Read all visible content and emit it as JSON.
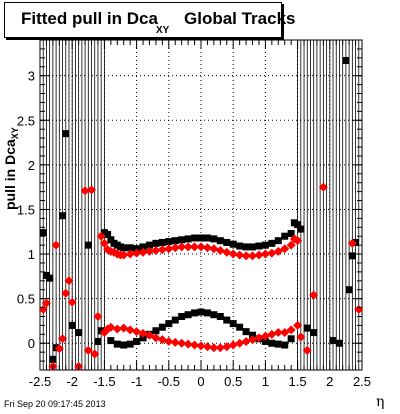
{
  "title": {
    "main": "Fitted pull in Dca",
    "subscript": "XY",
    "tail": "Global Tracks"
  },
  "ylabel": {
    "main": "pull in Dca",
    "subscript": "XY"
  },
  "xlabel": "η",
  "timestamp": "Fri Sep 20 09:17:45 2013",
  "colors": {
    "mean": "#ff0000",
    "sigma": "#000000",
    "frame": "#000000"
  },
  "chart_data": {
    "type": "scatter",
    "xlim": [
      -2.5,
      2.5
    ],
    "ylim": [
      -0.3,
      3.4
    ],
    "xticks": [
      -2.5,
      -2,
      -1.5,
      -1,
      -0.5,
      0,
      0.5,
      1,
      1.5,
      2,
      2.5
    ],
    "xtick_labels": [
      "-2.5",
      "-2",
      "-1.5",
      "-1",
      "-0.5",
      "0",
      "0.5",
      "1",
      "1.5",
      "2",
      "2.5"
    ],
    "yticks": [
      0,
      0.5,
      1,
      1.5,
      2,
      2.5,
      3
    ],
    "ytick_labels": [
      "0",
      "0.5",
      "1",
      "1.5",
      "2",
      "2.5",
      "3"
    ],
    "grid": true,
    "series": [
      {
        "marker": "square",
        "color": "#000000",
        "points": [
          [
            -2.45,
            1.24
          ],
          [
            -2.4,
            0.76
          ],
          [
            -2.35,
            0.73
          ],
          [
            -2.3,
            -0.18
          ],
          [
            -2.25,
            -0.05
          ],
          [
            -2.15,
            1.43
          ],
          [
            -2.1,
            2.35
          ],
          [
            -2.0,
            0.2
          ],
          [
            -1.9,
            0.12
          ],
          [
            -1.75,
            1.1
          ],
          [
            -1.6,
            0.02
          ],
          [
            -1.55,
            0.14
          ],
          [
            -1.5,
            1.24
          ],
          [
            -1.45,
            1.22
          ],
          [
            -1.4,
            1.16
          ],
          [
            -1.35,
            1.12
          ],
          [
            -1.3,
            1.1
          ],
          [
            -1.25,
            1.08
          ],
          [
            -1.2,
            1.07
          ],
          [
            -1.1,
            1.07
          ],
          [
            -1.0,
            1.06
          ],
          [
            -0.9,
            1.08
          ],
          [
            -0.8,
            1.1
          ],
          [
            -0.7,
            1.12
          ],
          [
            -0.6,
            1.13
          ],
          [
            -0.5,
            1.14
          ],
          [
            -0.4,
            1.15
          ],
          [
            -0.3,
            1.16
          ],
          [
            -0.2,
            1.17
          ],
          [
            -0.1,
            1.18
          ],
          [
            0.0,
            1.18
          ],
          [
            0.1,
            1.18
          ],
          [
            0.2,
            1.17
          ],
          [
            0.3,
            1.15
          ],
          [
            0.4,
            1.13
          ],
          [
            0.5,
            1.11
          ],
          [
            0.6,
            1.09
          ],
          [
            0.7,
            1.08
          ],
          [
            0.8,
            1.08
          ],
          [
            0.9,
            1.09
          ],
          [
            1.0,
            1.1
          ],
          [
            1.1,
            1.12
          ],
          [
            1.2,
            1.15
          ],
          [
            1.3,
            1.2
          ],
          [
            1.4,
            1.23
          ],
          [
            1.45,
            1.35
          ],
          [
            1.5,
            1.33
          ],
          [
            1.55,
            1.28
          ],
          [
            1.65,
            0.17
          ],
          [
            1.75,
            0.12
          ],
          [
            2.05,
            0.03
          ],
          [
            2.15,
            0.0
          ],
          [
            2.25,
            3.17
          ],
          [
            2.3,
            0.6
          ],
          [
            2.35,
            0.98
          ],
          [
            2.4,
            1.13
          ]
        ]
      },
      {
        "marker": "square",
        "color": "#000000",
        "points": [
          [
            -1.4,
            0.03
          ],
          [
            -1.3,
            -0.01
          ],
          [
            -1.2,
            -0.02
          ],
          [
            -1.1,
            -0.01
          ],
          [
            -1.0,
            0.02
          ],
          [
            -0.9,
            0.06
          ],
          [
            -0.8,
            0.1
          ],
          [
            -0.7,
            0.14
          ],
          [
            -0.6,
            0.18
          ],
          [
            -0.5,
            0.22
          ],
          [
            -0.4,
            0.26
          ],
          [
            -0.3,
            0.3
          ],
          [
            -0.2,
            0.32
          ],
          [
            -0.1,
            0.34
          ],
          [
            0.0,
            0.35
          ],
          [
            0.1,
            0.34
          ],
          [
            0.2,
            0.32
          ],
          [
            0.3,
            0.3
          ],
          [
            0.4,
            0.26
          ],
          [
            0.5,
            0.22
          ],
          [
            0.6,
            0.18
          ],
          [
            0.7,
            0.13
          ],
          [
            0.8,
            0.09
          ],
          [
            0.9,
            0.05
          ],
          [
            1.0,
            0.02
          ],
          [
            1.1,
            0.0
          ],
          [
            1.2,
            -0.01
          ],
          [
            1.3,
            -0.02
          ],
          [
            1.4,
            0.05
          ]
        ]
      },
      {
        "marker": "diamond",
        "color": "#ff0000",
        "points": [
          [
            -2.45,
            0.38
          ],
          [
            -2.4,
            0.45
          ],
          [
            -2.3,
            -0.26
          ],
          [
            -2.25,
            1.1
          ],
          [
            -2.2,
            -0.06
          ],
          [
            -2.15,
            0.05
          ],
          [
            -2.1,
            0.56
          ],
          [
            -2.05,
            0.7
          ],
          [
            -2.0,
            0.46
          ],
          [
            -1.9,
            -0.26
          ],
          [
            -1.8,
            1.71
          ],
          [
            -1.75,
            -0.08
          ],
          [
            -1.7,
            1.72
          ],
          [
            -1.65,
            -0.12
          ],
          [
            -1.6,
            0.3
          ],
          [
            -1.55,
            1.2
          ],
          [
            -1.5,
            1.12
          ],
          [
            -1.45,
            1.05
          ],
          [
            -1.4,
            1.03
          ],
          [
            -1.35,
            1.02
          ],
          [
            -1.3,
            1.0
          ],
          [
            -1.25,
            0.99
          ],
          [
            -1.2,
            0.99
          ],
          [
            -1.1,
            1.0
          ],
          [
            -1.0,
            1.01
          ],
          [
            -0.9,
            1.02
          ],
          [
            -0.8,
            1.03
          ],
          [
            -0.7,
            1.04
          ],
          [
            -0.6,
            1.05
          ],
          [
            -0.5,
            1.06
          ],
          [
            -0.4,
            1.07
          ],
          [
            -0.3,
            1.08
          ],
          [
            -0.2,
            1.08
          ],
          [
            -0.1,
            1.08
          ],
          [
            0.0,
            1.08
          ],
          [
            0.1,
            1.07
          ],
          [
            0.2,
            1.06
          ],
          [
            0.3,
            1.04
          ],
          [
            0.4,
            1.02
          ],
          [
            0.5,
            1.0
          ],
          [
            0.6,
            0.99
          ],
          [
            0.7,
            0.98
          ],
          [
            0.8,
            0.98
          ],
          [
            0.9,
            0.99
          ],
          [
            1.0,
            1.0
          ],
          [
            1.1,
            1.01
          ],
          [
            1.2,
            1.03
          ],
          [
            1.3,
            1.06
          ],
          [
            1.4,
            1.1
          ],
          [
            1.45,
            1.17
          ],
          [
            1.5,
            1.15
          ],
          [
            1.55,
            0.07
          ],
          [
            1.65,
            -0.08
          ],
          [
            1.75,
            0.54
          ],
          [
            1.9,
            1.75
          ],
          [
            2.35,
            1.12
          ],
          [
            2.45,
            0.38
          ]
        ]
      },
      {
        "marker": "diamond",
        "color": "#ff0000",
        "points": [
          [
            -1.5,
            0.12
          ],
          [
            -1.45,
            0.16
          ],
          [
            -1.4,
            0.18
          ],
          [
            -1.3,
            0.16
          ],
          [
            -1.2,
            0.17
          ],
          [
            -1.1,
            0.15
          ],
          [
            -1.0,
            0.13
          ],
          [
            -0.9,
            0.11
          ],
          [
            -0.8,
            0.09
          ],
          [
            -0.7,
            0.06
          ],
          [
            -0.6,
            0.04
          ],
          [
            -0.5,
            0.02
          ],
          [
            -0.4,
            0.01
          ],
          [
            -0.3,
            0.0
          ],
          [
            -0.2,
            -0.01
          ],
          [
            -0.1,
            -0.02
          ],
          [
            0.0,
            -0.03
          ],
          [
            0.1,
            -0.04
          ],
          [
            0.2,
            -0.05
          ],
          [
            0.3,
            -0.05
          ],
          [
            0.4,
            -0.04
          ],
          [
            0.5,
            -0.02
          ],
          [
            0.6,
            0.0
          ],
          [
            0.7,
            0.02
          ],
          [
            0.8,
            0.04
          ],
          [
            0.9,
            0.06
          ],
          [
            1.0,
            0.08
          ],
          [
            1.1,
            0.1
          ],
          [
            1.2,
            0.12
          ],
          [
            1.3,
            0.12
          ],
          [
            1.4,
            0.15
          ],
          [
            1.5,
            0.2
          ]
        ]
      }
    ]
  }
}
